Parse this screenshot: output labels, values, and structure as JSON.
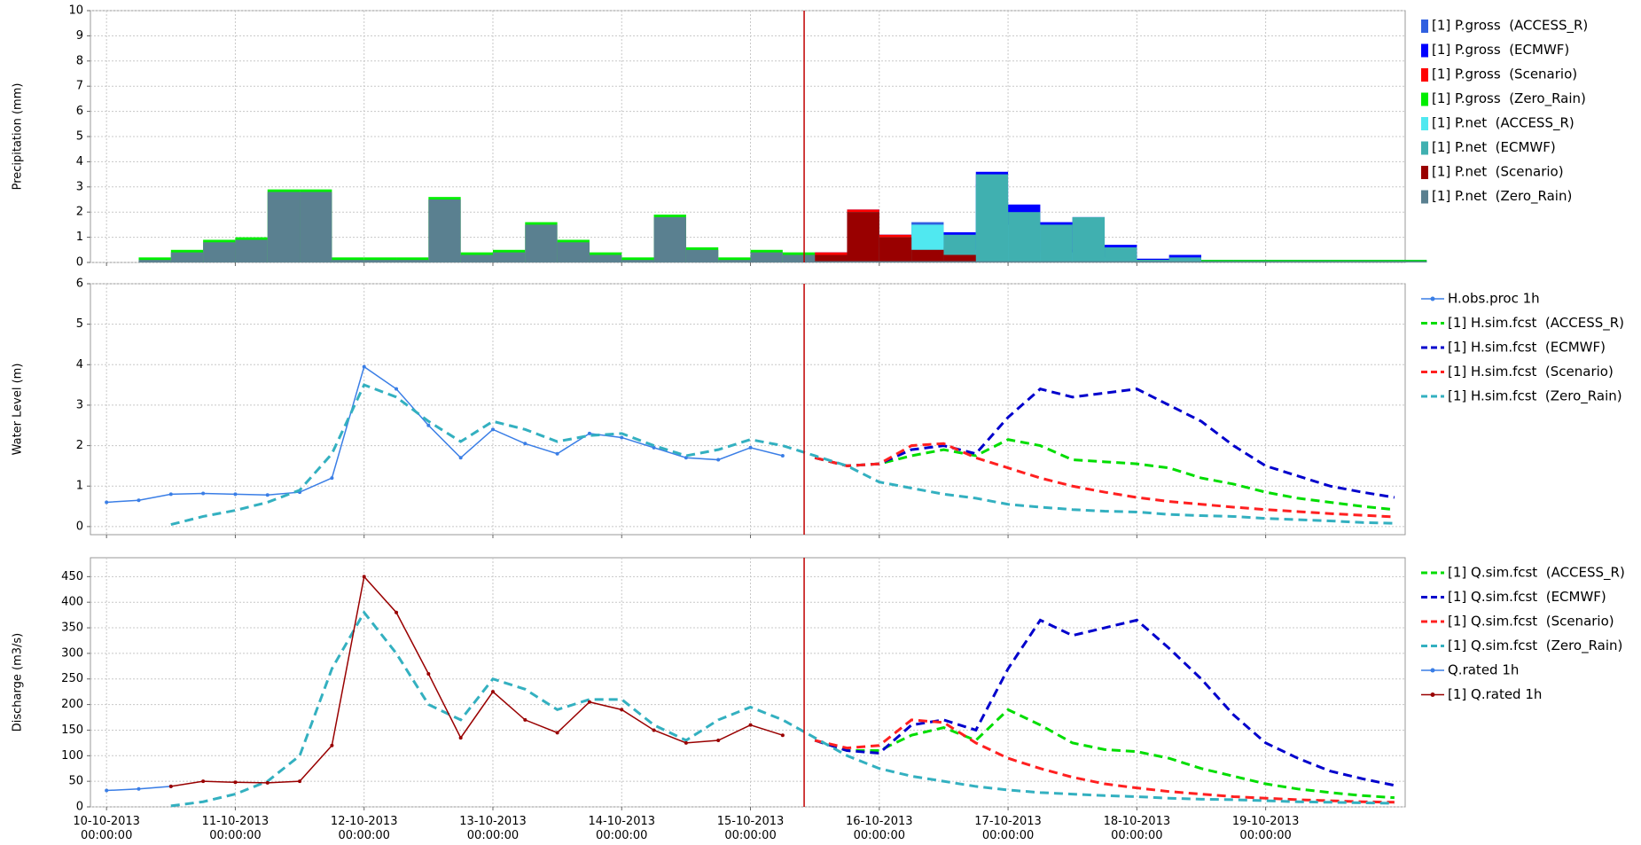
{
  "time_axis": {
    "x": [
      "10-10-2013 00:00:00",
      "10-10-2013 06:00:00",
      "10-10-2013 12:00:00",
      "10-10-2013 18:00:00",
      "11-10-2013 00:00:00",
      "11-10-2013 06:00:00",
      "11-10-2013 12:00:00",
      "11-10-2013 18:00:00",
      "12-10-2013 00:00:00",
      "12-10-2013 06:00:00",
      "12-10-2013 12:00:00",
      "12-10-2013 18:00:00",
      "13-10-2013 00:00:00",
      "13-10-2013 06:00:00",
      "13-10-2013 12:00:00",
      "13-10-2013 18:00:00",
      "14-10-2013 00:00:00",
      "14-10-2013 06:00:00",
      "14-10-2013 12:00:00",
      "14-10-2013 18:00:00",
      "15-10-2013 00:00:00",
      "15-10-2013 06:00:00",
      "15-10-2013 12:00:00",
      "15-10-2013 18:00:00",
      "16-10-2013 00:00:00",
      "16-10-2013 06:00:00",
      "16-10-2013 12:00:00",
      "16-10-2013 18:00:00",
      "17-10-2013 00:00:00",
      "17-10-2013 06:00:00",
      "17-10-2013 12:00:00",
      "17-10-2013 18:00:00",
      "18-10-2013 00:00:00",
      "18-10-2013 06:00:00",
      "18-10-2013 12:00:00",
      "18-10-2013 18:00:00",
      "19-10-2013 00:00:00",
      "19-10-2013 06:00:00",
      "19-10-2013 12:00:00",
      "19-10-2013 18:00:00",
      "20-10-2013 00:00:00"
    ],
    "xlim": [
      "09-10-2013 21:00:00",
      "20-10-2013 02:00:00"
    ],
    "xticks": [
      "10-10-2013 00:00:00",
      "11-10-2013 00:00:00",
      "12-10-2013 00:00:00",
      "13-10-2013 00:00:00",
      "14-10-2013 00:00:00",
      "15-10-2013 00:00:00",
      "16-10-2013 00:00:00",
      "17-10-2013 00:00:00",
      "18-10-2013 00:00:00",
      "19-10-2013 00:00:00"
    ],
    "forecast_line": {
      "x": "15-10-2013 10:00:00",
      "color": "#c00000"
    },
    "grid": true
  },
  "chart_data": [
    {
      "type": "bar",
      "y_label": "Precipitation (mm)",
      "ylim": [
        0,
        10
      ],
      "yticks": [
        0,
        1,
        2,
        3,
        4,
        5,
        6,
        7,
        8,
        9,
        10
      ],
      "series": [
        {
          "name": "[1] P.gross  (ACCESS_R)",
          "color": "#3060e0",
          "values": [
            null,
            null,
            null,
            null,
            null,
            null,
            null,
            null,
            null,
            null,
            null,
            null,
            null,
            null,
            null,
            null,
            null,
            null,
            null,
            null,
            null,
            null,
            0.3,
            0.7,
            1.1,
            1.6,
            0.6,
            3.1,
            1.6,
            0.5,
            0.5,
            0.3,
            0.1,
            0,
            0,
            0,
            0,
            0,
            0,
            0,
            0
          ]
        },
        {
          "name": "[1] P.gross  (ECMWF)",
          "color": "#0000ff",
          "values": [
            null,
            null,
            null,
            null,
            null,
            null,
            null,
            null,
            null,
            null,
            null,
            null,
            null,
            null,
            null,
            null,
            null,
            null,
            null,
            null,
            null,
            null,
            0.4,
            2.1,
            1.1,
            0.6,
            1.2,
            3.6,
            2.3,
            1.6,
            1.8,
            0.7,
            0.15,
            0.3,
            0.1,
            0.1,
            0.1,
            0.1,
            0.1,
            0.1,
            0.1
          ]
        },
        {
          "name": "[1] P.gross  (Scenario)",
          "color": "#ff0000",
          "values": [
            null,
            null,
            null,
            null,
            null,
            null,
            null,
            null,
            null,
            null,
            null,
            null,
            null,
            null,
            null,
            null,
            null,
            null,
            null,
            null,
            null,
            null,
            0.4,
            2.1,
            1.1,
            0.6,
            0.4,
            0,
            0,
            0,
            0,
            0,
            0,
            0,
            0,
            0,
            0,
            0,
            0,
            0,
            0
          ]
        },
        {
          "name": "[1] P.gross  (Zero_Rain)",
          "color": "#00ee00",
          "values": [
            null,
            0.2,
            0.5,
            0.9,
            1.0,
            2.9,
            2.9,
            0.2,
            0.2,
            0.2,
            2.6,
            0.4,
            0.5,
            1.6,
            0.9,
            0.4,
            0.2,
            1.9,
            0.6,
            0.2,
            0.5,
            0.4,
            0.1,
            0.1,
            0.1,
            0.1,
            0.1,
            0.1,
            0.1,
            0.1,
            0.1,
            0.1,
            0.1,
            0.1,
            0.1,
            0.1,
            0.1,
            0.1,
            0.1,
            0.1,
            0.1
          ]
        },
        {
          "name": "[1] P.net  (ACCESS_R)",
          "color": "#50e8f0",
          "values": [
            null,
            null,
            null,
            null,
            null,
            null,
            null,
            null,
            null,
            null,
            null,
            null,
            null,
            null,
            null,
            null,
            null,
            null,
            null,
            null,
            null,
            null,
            0.2,
            0.6,
            1.0,
            1.5,
            0.5,
            3.0,
            1.5,
            0.4,
            0.4,
            0.2,
            0.05,
            0,
            0,
            0,
            0,
            0,
            0,
            0,
            0
          ]
        },
        {
          "name": "[1] P.net  (ECMWF)",
          "color": "#40b0b0",
          "values": [
            null,
            null,
            null,
            null,
            null,
            null,
            null,
            null,
            null,
            null,
            null,
            null,
            null,
            null,
            null,
            null,
            null,
            null,
            null,
            null,
            null,
            null,
            0.3,
            2.0,
            1.0,
            0.5,
            1.1,
            3.5,
            2.0,
            1.5,
            1.8,
            0.6,
            0.1,
            0.2,
            0.05,
            0.05,
            0.05,
            0.05,
            0.05,
            0.05,
            0.05
          ]
        },
        {
          "name": "[1] P.net  (Scenario)",
          "color": "#990000",
          "values": [
            null,
            null,
            null,
            null,
            null,
            null,
            null,
            null,
            null,
            null,
            null,
            null,
            null,
            null,
            null,
            null,
            null,
            null,
            null,
            null,
            null,
            null,
            0.3,
            2.0,
            1.0,
            0.5,
            0.3,
            0,
            0,
            0,
            0,
            0,
            0,
            0,
            0,
            0,
            0,
            0,
            0,
            0,
            0
          ]
        },
        {
          "name": "[1] P.net  (Zero_Rain)",
          "color": "#5a8090",
          "values": [
            null,
            0.1,
            0.4,
            0.8,
            0.9,
            2.8,
            2.8,
            0.1,
            0.1,
            0.1,
            2.5,
            0.3,
            0.4,
            1.5,
            0.8,
            0.3,
            0.1,
            1.8,
            0.5,
            0.1,
            0.4,
            0.3,
            0.05,
            0.05,
            0.05,
            0.05,
            0.05,
            0.05,
            0.05,
            0.05,
            0.05,
            0.05,
            0.05,
            0.05,
            0.05,
            0.05,
            0.05,
            0.05,
            0.05,
            0.05,
            0.05
          ]
        }
      ]
    },
    {
      "type": "line",
      "y_label": "Water Level (m)",
      "ylim": [
        -0.2,
        6
      ],
      "yticks": [
        0,
        1,
        2,
        3,
        4,
        5,
        6
      ],
      "series": [
        {
          "name": "H.obs.proc 1h",
          "color": "#3a7ee6",
          "marker": true,
          "values": [
            0.6,
            0.65,
            0.8,
            0.82,
            0.8,
            0.78,
            0.85,
            1.2,
            3.95,
            3.4,
            2.5,
            1.7,
            2.4,
            2.05,
            1.8,
            2.3,
            2.2,
            1.95,
            1.7,
            1.65,
            1.95,
            1.75,
            null,
            null,
            null,
            null,
            null,
            null,
            null,
            null,
            null,
            null,
            null,
            null,
            null,
            null,
            null,
            null,
            null,
            null,
            null
          ]
        },
        {
          "name": "[1] H.sim.fcst  (ACCESS_R)",
          "color": "#00dd00",
          "dash": true,
          "values": [
            null,
            null,
            null,
            null,
            null,
            null,
            null,
            null,
            null,
            null,
            null,
            null,
            null,
            null,
            null,
            null,
            null,
            null,
            null,
            null,
            null,
            null,
            1.7,
            1.5,
            1.55,
            1.75,
            1.9,
            1.75,
            2.15,
            2.0,
            1.65,
            1.6,
            1.55,
            1.45,
            1.2,
            1.05,
            0.85,
            0.7,
            0.6,
            0.5,
            0.42
          ]
        },
        {
          "name": "[1] H.sim.fcst  (ECMWF)",
          "color": "#0000cc",
          "dash": true,
          "values": [
            null,
            null,
            null,
            null,
            null,
            null,
            null,
            null,
            null,
            null,
            null,
            null,
            null,
            null,
            null,
            null,
            null,
            null,
            null,
            null,
            null,
            null,
            1.7,
            1.5,
            1.55,
            1.9,
            2.0,
            1.8,
            2.7,
            3.4,
            3.2,
            3.3,
            3.4,
            3.0,
            2.6,
            2.0,
            1.5,
            1.25,
            1.0,
            0.85,
            0.72
          ]
        },
        {
          "name": "[1] H.sim.fcst  (Scenario)",
          "color": "#ff2020",
          "dash": true,
          "values": [
            null,
            null,
            null,
            null,
            null,
            null,
            null,
            null,
            null,
            null,
            null,
            null,
            null,
            null,
            null,
            null,
            null,
            null,
            null,
            null,
            null,
            null,
            1.7,
            1.5,
            1.55,
            2.0,
            2.05,
            1.7,
            1.45,
            1.2,
            1.0,
            0.85,
            0.72,
            0.62,
            0.55,
            0.48,
            0.42,
            0.37,
            0.32,
            0.28,
            0.24
          ]
        },
        {
          "name": "[1] H.sim.fcst  (Zero_Rain)",
          "color": "#33b0c0",
          "dash": true,
          "values": [
            null,
            null,
            0.05,
            0.25,
            0.4,
            0.6,
            0.9,
            1.8,
            3.5,
            3.2,
            2.6,
            2.1,
            2.6,
            2.4,
            2.1,
            2.25,
            2.3,
            2.0,
            1.75,
            1.9,
            2.15,
            2.0,
            1.75,
            1.5,
            1.1,
            0.95,
            0.8,
            0.7,
            0.55,
            0.48,
            0.42,
            0.38,
            0.36,
            0.3,
            0.27,
            0.25,
            0.2,
            0.17,
            0.14,
            0.1,
            0.08
          ]
        }
      ]
    },
    {
      "type": "line",
      "y_label": "Discharge (m3/s)",
      "ylim": [
        0,
        487
      ],
      "yticks": [
        0,
        50,
        100,
        150,
        200,
        250,
        300,
        350,
        400,
        450
      ],
      "show_xticks": true,
      "series": [
        {
          "name": "[1] Q.sim.fcst  (ACCESS_R)",
          "color": "#00dd00",
          "dash": true,
          "values": [
            null,
            null,
            null,
            null,
            null,
            null,
            null,
            null,
            null,
            null,
            null,
            null,
            null,
            null,
            null,
            null,
            null,
            null,
            null,
            null,
            null,
            null,
            130,
            110,
            110,
            140,
            155,
            130,
            190,
            160,
            125,
            112,
            108,
            95,
            75,
            60,
            45,
            35,
            28,
            22,
            18
          ]
        },
        {
          "name": "[1] Q.sim.fcst  (ECMWF)",
          "color": "#0000cc",
          "dash": true,
          "values": [
            null,
            null,
            null,
            null,
            null,
            null,
            null,
            null,
            null,
            null,
            null,
            null,
            null,
            null,
            null,
            null,
            null,
            null,
            null,
            null,
            null,
            null,
            130,
            110,
            105,
            160,
            170,
            150,
            270,
            365,
            335,
            350,
            365,
            310,
            250,
            180,
            125,
            95,
            70,
            55,
            42
          ]
        },
        {
          "name": "[1] Q.sim.fcst  (Scenario)",
          "color": "#ff2020",
          "dash": true,
          "values": [
            null,
            null,
            null,
            null,
            null,
            null,
            null,
            null,
            null,
            null,
            null,
            null,
            null,
            null,
            null,
            null,
            null,
            null,
            null,
            null,
            null,
            null,
            130,
            115,
            120,
            170,
            165,
            125,
            95,
            75,
            58,
            45,
            37,
            30,
            25,
            20,
            17,
            14,
            12,
            10,
            9
          ]
        },
        {
          "name": "[1] Q.sim.fcst  (Zero_Rain)",
          "color": "#33b0c0",
          "dash": true,
          "values": [
            null,
            null,
            2,
            10,
            25,
            50,
            100,
            270,
            380,
            300,
            200,
            170,
            250,
            230,
            190,
            210,
            210,
            160,
            130,
            170,
            195,
            170,
            135,
            100,
            75,
            60,
            50,
            40,
            33,
            28,
            25,
            22,
            20,
            17,
            15,
            14,
            12,
            10,
            9,
            8,
            7
          ]
        },
        {
          "name": "Q.rated 1h",
          "color": "#3a7ee6",
          "marker": true,
          "values": [
            32,
            35,
            40,
            null,
            null,
            null,
            null,
            null,
            null,
            null,
            null,
            null,
            null,
            null,
            null,
            null,
            null,
            null,
            null,
            null,
            null,
            null,
            null,
            null,
            null,
            null,
            null,
            null,
            null,
            null,
            null,
            null,
            null,
            null,
            null,
            null,
            null,
            null,
            null,
            null,
            null
          ]
        },
        {
          "name": "[1] Q.rated 1h",
          "color": "#990000",
          "marker": true,
          "values": [
            null,
            null,
            40,
            50,
            48,
            47,
            50,
            120,
            450,
            380,
            260,
            135,
            225,
            170,
            145,
            205,
            190,
            150,
            125,
            130,
            160,
            140,
            null,
            null,
            null,
            null,
            null,
            null,
            null,
            null,
            null,
            null,
            null,
            null,
            null,
            null,
            null,
            null,
            null,
            null,
            null
          ]
        }
      ]
    }
  ]
}
